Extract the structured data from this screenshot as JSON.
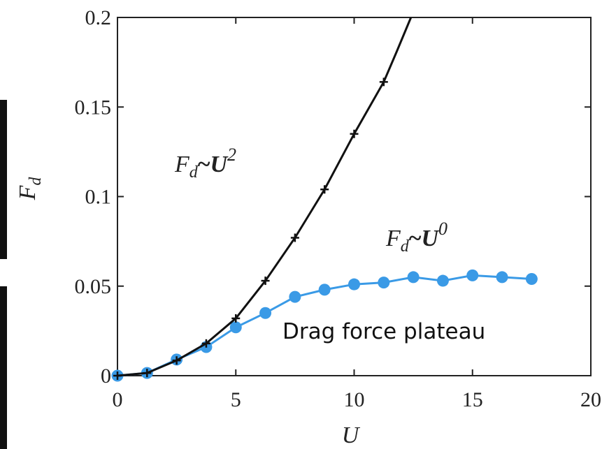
{
  "chart_data": {
    "type": "line",
    "xlabel": "U",
    "ylabel": "F_d",
    "xlim": [
      0,
      20
    ],
    "ylim": [
      0,
      0.2
    ],
    "xticks": [
      0,
      5,
      10,
      15,
      20
    ],
    "xtick_labels": [
      "0",
      "5",
      "10",
      "15",
      "20"
    ],
    "yticks": [
      0,
      0.05,
      0.1,
      0.15,
      0.2
    ],
    "ytick_labels": [
      "0",
      "0.05",
      "0.1",
      "0.15",
      "0.2"
    ],
    "grid": false,
    "series": [
      {
        "color": "#111111",
        "marker": "plus",
        "x": [
          0,
          1.25,
          2.5,
          3.75,
          5,
          6.25,
          7.5,
          8.75,
          10,
          11.25
        ],
        "y": [
          0,
          0.0015,
          0.0085,
          0.018,
          0.032,
          0.053,
          0.077,
          0.104,
          0.135,
          0.164
        ],
        "curve_extension": {
          "x": [
            11.25,
            11.8,
            12.4
          ],
          "y": [
            0.164,
            0.181,
            0.2
          ]
        }
      },
      {
        "color": "#3a9ae6",
        "marker": "circle",
        "x": [
          0,
          1.25,
          2.5,
          3.75,
          5,
          6.25,
          7.5,
          8.75,
          10,
          11.25,
          12.5,
          13.75,
          15,
          16.25,
          17.5
        ],
        "y": [
          0,
          0.0015,
          0.009,
          0.016,
          0.027,
          0.035,
          0.044,
          0.048,
          0.051,
          0.052,
          0.055,
          0.053,
          0.056,
          0.055,
          0.054
        ]
      }
    ],
    "annotations": [
      {
        "base": "F",
        "sub": "d",
        "rel": "~",
        "power_base": "U",
        "exponent": "2"
      },
      {
        "base": "F",
        "sub": "d",
        "rel": "~",
        "power_base": "U",
        "exponent": "0"
      },
      {
        "text": "Drag force plateau"
      }
    ]
  }
}
